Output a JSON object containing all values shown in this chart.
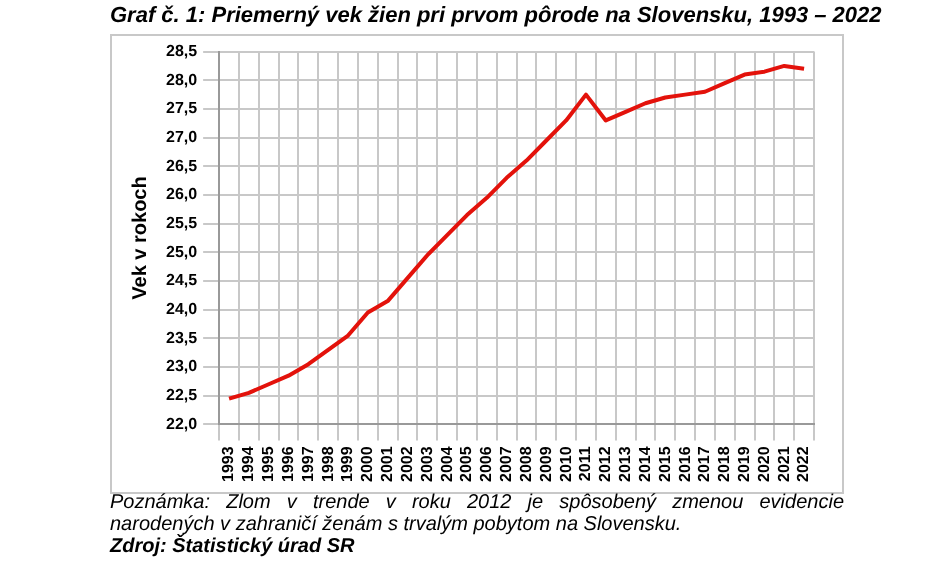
{
  "chart_data": {
    "type": "line",
    "title": "Graf č. 1: Priemerný vek žien pri prvom pôrode na Slovensku, 1993 – 2022",
    "ylabel": "Vek v rokoch",
    "categories": [
      "1993",
      "1994",
      "1995",
      "1996",
      "1997",
      "1998",
      "1999",
      "2000",
      "2001",
      "2002",
      "2003",
      "2004",
      "2005",
      "2006",
      "2007",
      "2008",
      "2009",
      "2010",
      "2011",
      "2012",
      "2013",
      "2014",
      "2015",
      "2016",
      "2017",
      "2018",
      "2019",
      "2020",
      "2021",
      "2022"
    ],
    "series": [
      {
        "color": "#e3120b",
        "values": [
          22.45,
          22.55,
          22.7,
          22.85,
          23.05,
          23.3,
          23.55,
          23.95,
          24.15,
          24.55,
          24.95,
          25.3,
          25.65,
          25.95,
          26.3,
          26.6,
          26.95,
          27.3,
          27.75,
          27.3,
          27.45,
          27.6,
          27.7,
          27.75,
          27.8,
          27.95,
          28.1,
          28.15,
          28.25,
          28.2
        ]
      }
    ],
    "ylim": [
      22,
      28.5
    ],
    "yticks": [
      {
        "value": 22,
        "label": "22,0"
      },
      {
        "value": 22.5,
        "label": "22,5"
      },
      {
        "value": 23,
        "label": "23,0"
      },
      {
        "value": 23.5,
        "label": "23,5"
      },
      {
        "value": 24,
        "label": "24,0"
      },
      {
        "value": 24.5,
        "label": "24,5"
      },
      {
        "value": 25,
        "label": "25,0"
      },
      {
        "value": 25.5,
        "label": "25,5"
      },
      {
        "value": 26,
        "label": "26,0"
      },
      {
        "value": 26.5,
        "label": "26,5"
      },
      {
        "value": 27,
        "label": "27,0"
      },
      {
        "value": 27.5,
        "label": "27,5"
      },
      {
        "value": 28,
        "label": "28,0"
      },
      {
        "value": 28.5,
        "label": "28,5"
      }
    ],
    "grid": true,
    "legend": false,
    "marker": "none",
    "line_style": "solid",
    "annotations": [
      "Poznámka: Zlom v trende v roku 2012 je spôsobený zmenou evidencie narodených v zahraničí ženám s trvalým pobytom na Slovensku.",
      "Zdroj: Štatistický úrad SR"
    ]
  }
}
